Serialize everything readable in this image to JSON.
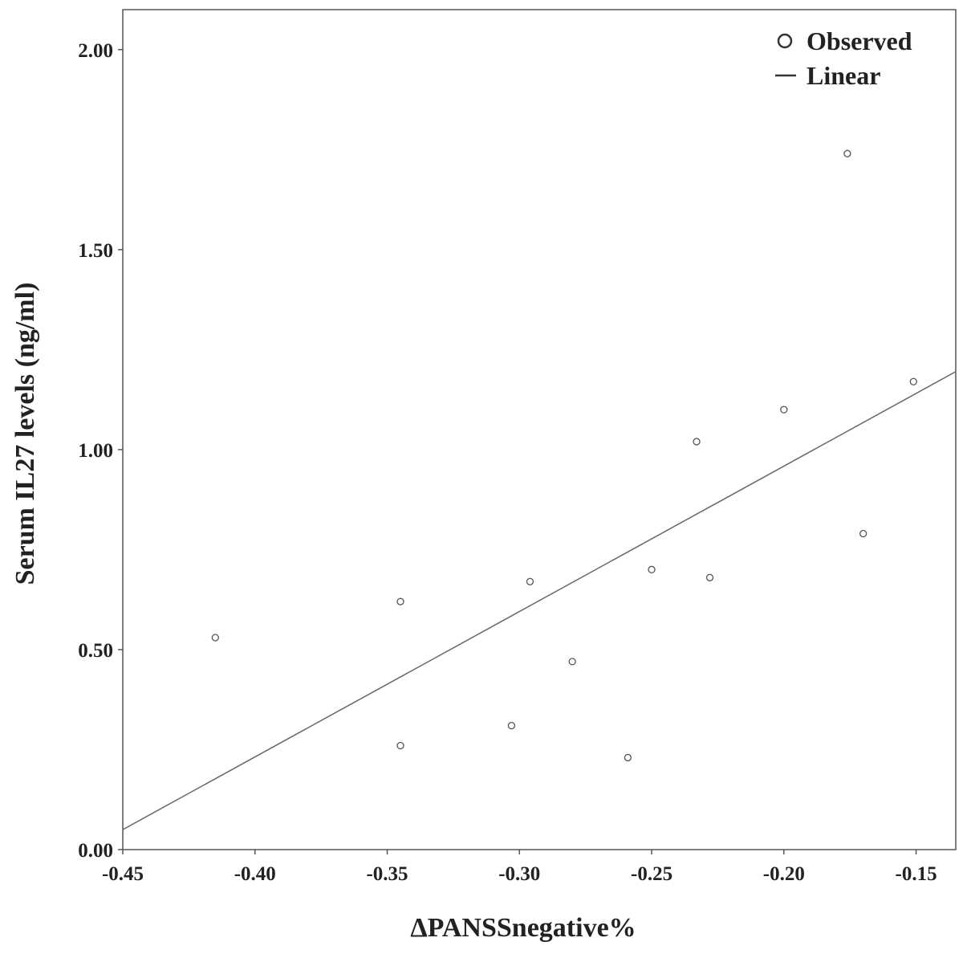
{
  "chart_data": {
    "type": "scatter",
    "title": "",
    "xlabel": "ΔPANSSnegative%",
    "ylabel": "Serum IL27 levels (ng/ml)",
    "xlim": [
      -0.45,
      -0.135
    ],
    "ylim": [
      0.0,
      2.1
    ],
    "x_ticks": [
      -0.45,
      -0.4,
      -0.35,
      -0.3,
      -0.25,
      -0.2,
      -0.15
    ],
    "x_tick_labels": [
      "-0.45",
      "-0.40",
      "-0.35",
      "-0.30",
      "-0.25",
      "-0.20",
      "-0.15"
    ],
    "y_ticks": [
      0.0,
      0.5,
      1.0,
      1.5,
      2.0
    ],
    "y_tick_labels": [
      "0.00",
      "0.50",
      "1.00",
      "1.50",
      "2.00"
    ],
    "grid": false,
    "legend_position": "top-right",
    "series": [
      {
        "name": "Observed",
        "kind": "scatter",
        "points": [
          {
            "x": -0.415,
            "y": 0.53
          },
          {
            "x": -0.345,
            "y": 0.62
          },
          {
            "x": -0.345,
            "y": 0.26
          },
          {
            "x": -0.303,
            "y": 0.31
          },
          {
            "x": -0.296,
            "y": 0.67
          },
          {
            "x": -0.28,
            "y": 0.47
          },
          {
            "x": -0.259,
            "y": 0.23
          },
          {
            "x": -0.25,
            "y": 0.7
          },
          {
            "x": -0.233,
            "y": 1.02
          },
          {
            "x": -0.228,
            "y": 0.68
          },
          {
            "x": -0.2,
            "y": 1.1
          },
          {
            "x": -0.176,
            "y": 1.74
          },
          {
            "x": -0.17,
            "y": 0.79
          },
          {
            "x": -0.151,
            "y": 1.17
          }
        ]
      },
      {
        "name": "Linear",
        "kind": "line",
        "points": [
          {
            "x": -0.45,
            "y": 0.05
          },
          {
            "x": -0.135,
            "y": 1.195
          }
        ]
      }
    ],
    "colors": {
      "axis": "#555555",
      "marker": "#555555",
      "line": "#666666",
      "text": "#222222"
    }
  }
}
